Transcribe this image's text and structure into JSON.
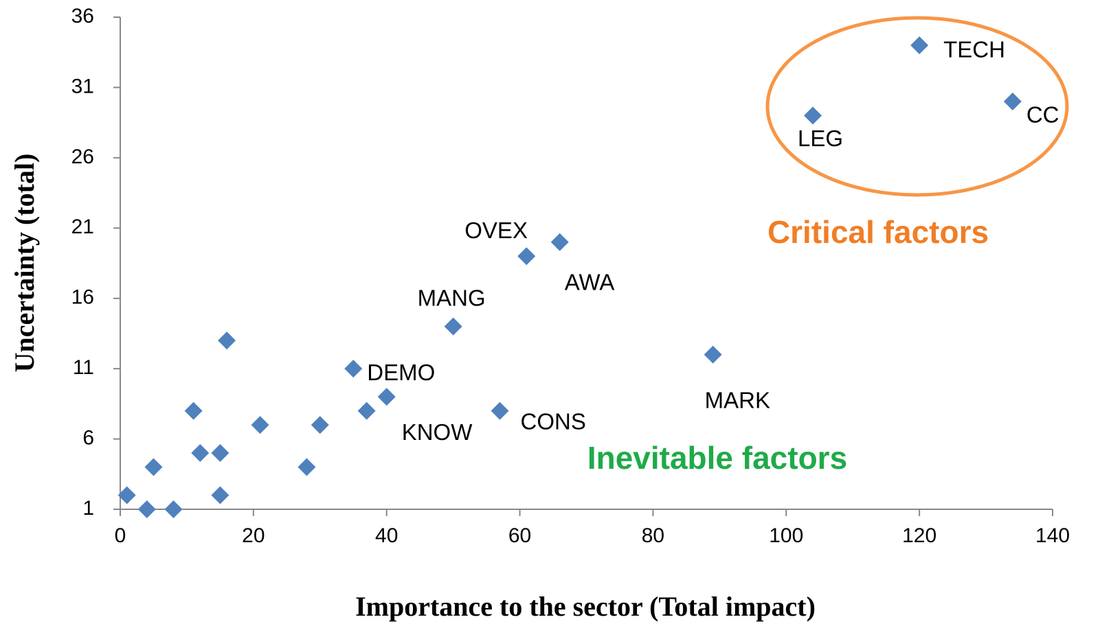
{
  "chart_data": {
    "type": "scatter",
    "xlabel": "Importance to the sector (Total impact)",
    "ylabel": "Uncertainty  (total)",
    "x": [
      1,
      4,
      5,
      8,
      11,
      12,
      15,
      15,
      16,
      21,
      28,
      30,
      35,
      37,
      40,
      50,
      57,
      61,
      66,
      89,
      104,
      120,
      134
    ],
    "values": [
      2,
      1,
      4,
      1,
      8,
      5,
      5,
      2,
      13,
      7,
      4,
      7,
      11,
      8,
      9,
      14,
      8,
      19,
      20,
      12,
      29,
      34,
      30
    ],
    "labels": [
      null,
      null,
      null,
      null,
      null,
      null,
      null,
      null,
      null,
      null,
      null,
      null,
      "DEMO",
      null,
      "KNOW",
      "MANG",
      "CONS",
      "OVEX",
      "AWA",
      "MARK",
      "LEG",
      "TECH",
      "CC"
    ],
    "color": "#4f81bd",
    "xlim": [
      0,
      140
    ],
    "xticks": [
      0,
      20,
      40,
      60,
      80,
      100,
      120,
      140
    ],
    "ylim": [
      1,
      36
    ],
    "yticks": [
      1,
      6,
      11,
      16,
      21,
      26,
      31,
      36
    ],
    "grid": false,
    "annotations": [
      {
        "text": "Critical factors",
        "color": "#f07e26"
      },
      {
        "text": "Inevitable factors",
        "color": "#1faa4a"
      }
    ]
  }
}
